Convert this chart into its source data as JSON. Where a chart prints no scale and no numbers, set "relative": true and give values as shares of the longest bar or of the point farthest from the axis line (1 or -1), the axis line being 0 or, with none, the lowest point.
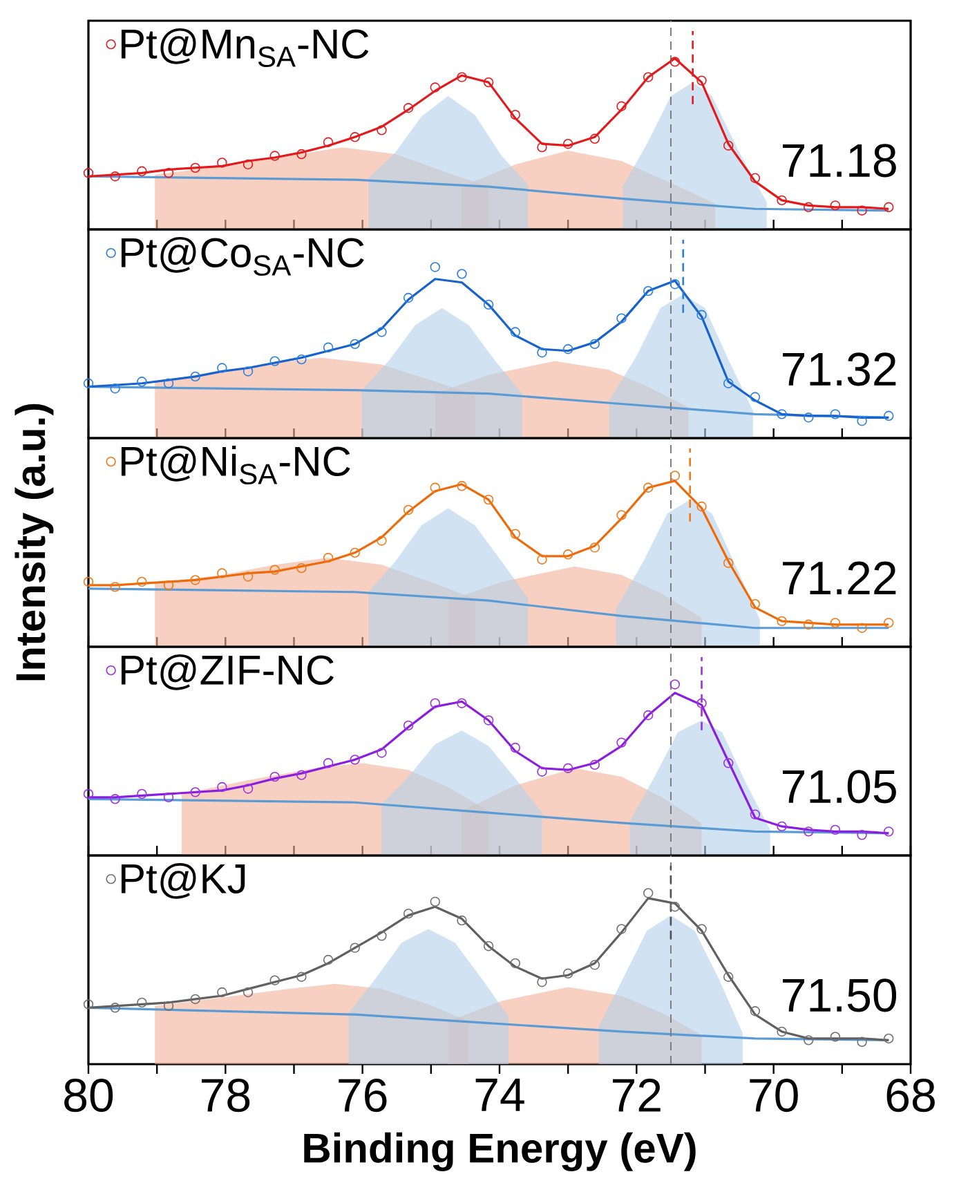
{
  "chart_data": [
    {
      "type": "line",
      "relative": true,
      "legend": "top left",
      "tick_labels": false,
      "xlim": [
        80,
        68
      ],
      "xticks": [
        80,
        {
          "value": 79,
          "label": null
        },
        78,
        {
          "value": 77,
          "label": null
        },
        76,
        {
          "value": 75,
          "label": null
        },
        74,
        {
          "value": 73,
          "label": null
        },
        72,
        {
          "value": 71,
          "label": null
        },
        70,
        {
          "value": 69,
          "label": null
        },
        68
      ],
      "x": [
        80,
        79.61,
        79.22,
        78.83,
        78.44,
        78.05,
        77.67,
        77.28,
        76.89,
        76.5,
        76.11,
        75.72,
        75.33,
        74.94,
        74.55,
        74.16,
        73.77,
        73.38,
        73.0,
        72.61,
        72.22,
        71.83,
        71.44,
        71.05,
        70.66,
        70.27,
        69.88,
        69.49,
        69.1,
        68.71,
        68.32
      ],
      "series": [
        {
          "type": "area",
          "color": "#f4b09a",
          "x": [
            79.03,
            78.05,
            77.08,
            76.3,
            75.52,
            74.75,
            74.16
          ],
          "values": [
            0.32,
            0.37,
            0.43,
            0.48,
            0.44,
            0.33,
            0.25
          ]
        },
        {
          "type": "area",
          "color": "#f4b09a",
          "x": [
            74.55,
            73.77,
            73.0,
            72.22,
            71.44,
            70.85
          ],
          "values": [
            0.25,
            0.38,
            0.46,
            0.4,
            0.26,
            0.15
          ]
        },
        {
          "type": "area",
          "color": "#b3d0ea",
          "x": [
            75.91,
            75.52,
            75.14,
            74.75,
            74.36,
            73.97,
            73.58
          ],
          "values": [
            0.3,
            0.45,
            0.66,
            0.78,
            0.67,
            0.43,
            0.26
          ]
        },
        {
          "type": "area",
          "color": "#b3d0ea",
          "x": [
            72.2,
            71.85,
            71.5,
            71.18,
            70.9,
            70.5,
            70.1
          ],
          "values": [
            0.25,
            0.5,
            0.78,
            0.86,
            0.78,
            0.45,
            0.16
          ]
        },
        {
          "type": "line",
          "color": "#5b9bd5",
          "x": [
            80,
            76.11,
            74.16,
            72.22,
            70.27,
            68.32
          ],
          "values": [
            0.31,
            0.29,
            0.25,
            0.18,
            0.12,
            0.11
          ]
        },
        {
          "type": "scatter",
          "marker": "circle",
          "name": "Pt@Mn$_{SA}$-NC",
          "color": "#e31a1c",
          "values": [
            0.33,
            0.31,
            0.34,
            0.33,
            0.36,
            0.39,
            0.38,
            0.43,
            0.44,
            0.51,
            0.54,
            0.58,
            0.71,
            0.83,
            0.89,
            0.86,
            0.67,
            0.48,
            0.5,
            0.53,
            0.72,
            0.89,
            0.98,
            0.87,
            0.49,
            0.3,
            0.17,
            0.13,
            0.14,
            0.11,
            0.13
          ]
        },
        {
          "color": "#e31a1c",
          "values": [
            0.31,
            0.32,
            0.33,
            0.35,
            0.36,
            0.37,
            0.4,
            0.42,
            0.45,
            0.49,
            0.54,
            0.6,
            0.7,
            0.81,
            0.9,
            0.86,
            0.65,
            0.5,
            0.49,
            0.54,
            0.7,
            0.89,
            1.0,
            0.86,
            0.5,
            0.28,
            0.17,
            0.14,
            0.13,
            0.13,
            0.12
          ]
        }
      ],
      "ref_lines": [
        {
          "axis": "x",
          "value": 71.5,
          "color": "#808080",
          "line_style": "dashed"
        },
        {
          "axis": "x",
          "value": 71.18,
          "color": "#e31a1c",
          "line_style": "dashed",
          "label": "71.18"
        }
      ]
    },
    {
      "type": "line",
      "relative": true,
      "legend": "top left",
      "tick_labels": false,
      "xlim": [
        80,
        68
      ],
      "xticks": [
        80,
        {
          "value": 79,
          "label": null
        },
        78,
        {
          "value": 77,
          "label": null
        },
        76,
        {
          "value": 75,
          "label": null
        },
        74,
        {
          "value": 73,
          "label": null
        },
        72,
        {
          "value": 71,
          "label": null
        },
        70,
        {
          "value": 69,
          "label": null
        },
        68
      ],
      "x": [
        80,
        79.61,
        79.22,
        78.83,
        78.44,
        78.05,
        77.67,
        77.28,
        76.89,
        76.5,
        76.11,
        75.72,
        75.33,
        74.94,
        74.55,
        74.16,
        73.77,
        73.38,
        73.0,
        72.61,
        72.22,
        71.83,
        71.44,
        71.05,
        70.66,
        70.27,
        69.88,
        69.49,
        69.1,
        68.71,
        68.32
      ],
      "series": [
        {
          "type": "area",
          "color": "#f4b09a",
          "x": [
            79.03,
            78.05,
            77.28,
            76.6,
            75.72,
            74.94,
            74.36
          ],
          "values": [
            0.33,
            0.39,
            0.44,
            0.47,
            0.43,
            0.33,
            0.25
          ]
        },
        {
          "type": "area",
          "color": "#f4b09a",
          "x": [
            74.94,
            74.16,
            73.19,
            72.41,
            71.83,
            71.24
          ],
          "values": [
            0.26,
            0.37,
            0.45,
            0.4,
            0.3,
            0.18
          ]
        },
        {
          "type": "area",
          "color": "#b3d0ea",
          "x": [
            76.01,
            75.62,
            75.23,
            74.84,
            74.45,
            74.06,
            73.67
          ],
          "values": [
            0.28,
            0.45,
            0.66,
            0.76,
            0.66,
            0.45,
            0.26
          ]
        },
        {
          "type": "area",
          "color": "#b3d0ea",
          "x": [
            72.4,
            72.0,
            71.65,
            71.32,
            71.0,
            70.65,
            70.3
          ],
          "values": [
            0.22,
            0.48,
            0.76,
            0.84,
            0.76,
            0.45,
            0.16
          ]
        },
        {
          "type": "line",
          "color": "#5b9bd5",
          "x": [
            80,
            76.11,
            74.16,
            72.22,
            70.27,
            68.32
          ],
          "values": [
            0.3,
            0.28,
            0.26,
            0.2,
            0.14,
            0.12
          ]
        },
        {
          "type": "scatter",
          "marker": "circle",
          "name": "Pt@Co$_{SA}$-NC",
          "color": "#2a7ee0",
          "values": [
            0.32,
            0.29,
            0.33,
            0.32,
            0.36,
            0.41,
            0.39,
            0.45,
            0.46,
            0.53,
            0.55,
            0.62,
            0.82,
            1.0,
            0.96,
            0.78,
            0.62,
            0.5,
            0.52,
            0.55,
            0.7,
            0.86,
            0.9,
            0.72,
            0.32,
            0.24,
            0.14,
            0.12,
            0.14,
            0.1,
            0.13
          ]
        },
        {
          "color": "#1762cc",
          "values": [
            0.3,
            0.31,
            0.32,
            0.34,
            0.36,
            0.39,
            0.41,
            0.44,
            0.47,
            0.51,
            0.55,
            0.64,
            0.81,
            0.93,
            0.91,
            0.78,
            0.6,
            0.52,
            0.51,
            0.56,
            0.68,
            0.86,
            0.92,
            0.71,
            0.33,
            0.22,
            0.14,
            0.13,
            0.13,
            0.12,
            0.12
          ]
        }
      ],
      "ref_lines": [
        {
          "axis": "x",
          "value": 71.5,
          "color": "#808080",
          "line_style": "dashed"
        },
        {
          "axis": "x",
          "value": 71.32,
          "color": "#2a7ee0",
          "line_style": "dashed",
          "label": "71.32"
        }
      ]
    },
    {
      "type": "line",
      "relative": true,
      "legend": "top left",
      "tick_labels": false,
      "xlim": [
        80,
        68
      ],
      "ylabel": "Intensity (a.u.)",
      "xticks": [
        80,
        {
          "value": 79,
          "label": null
        },
        78,
        {
          "value": 77,
          "label": null
        },
        76,
        {
          "value": 75,
          "label": null
        },
        74,
        {
          "value": 73,
          "label": null
        },
        72,
        {
          "value": 71,
          "label": null
        },
        70,
        {
          "value": 69,
          "label": null
        },
        68
      ],
      "x": [
        80,
        79.61,
        79.22,
        78.83,
        78.44,
        78.05,
        77.67,
        77.28,
        76.89,
        76.5,
        76.11,
        75.72,
        75.33,
        74.94,
        74.55,
        74.16,
        73.77,
        73.38,
        73.0,
        72.61,
        72.22,
        71.83,
        71.44,
        71.05,
        70.66,
        70.27,
        69.88,
        69.49,
        69.1,
        68.71,
        68.32
      ],
      "series": [
        {
          "type": "area",
          "color": "#f4b09a",
          "x": [
            79.03,
            78.05,
            77.28,
            76.5,
            75.72,
            74.94,
            74.36
          ],
          "values": [
            0.37,
            0.42,
            0.48,
            0.52,
            0.48,
            0.37,
            0.28
          ]
        },
        {
          "type": "area",
          "color": "#f4b09a",
          "x": [
            74.75,
            73.97,
            72.9,
            72.22,
            71.63,
            71.05
          ],
          "values": [
            0.27,
            0.38,
            0.47,
            0.42,
            0.31,
            0.17
          ]
        },
        {
          "type": "area",
          "color": "#b3d0ea",
          "x": [
            75.91,
            75.52,
            75.14,
            74.75,
            74.36,
            73.97,
            73.58
          ],
          "values": [
            0.32,
            0.5,
            0.71,
            0.81,
            0.71,
            0.5,
            0.28
          ]
        },
        {
          "type": "area",
          "color": "#b3d0ea",
          "x": [
            72.3,
            71.9,
            71.55,
            71.22,
            70.9,
            70.55,
            70.2
          ],
          "values": [
            0.22,
            0.5,
            0.78,
            0.86,
            0.78,
            0.47,
            0.16
          ]
        },
        {
          "type": "line",
          "color": "#5b9bd5",
          "x": [
            80,
            76.11,
            74.16,
            72.22,
            70.27,
            68.32
          ],
          "values": [
            0.34,
            0.32,
            0.27,
            0.18,
            0.11,
            0.11
          ]
        },
        {
          "type": "scatter",
          "marker": "circle",
          "name": "Pt@Ni$_{SA}$-NC",
          "color": "#f07818",
          "values": [
            0.38,
            0.35,
            0.38,
            0.36,
            0.39,
            0.43,
            0.41,
            0.45,
            0.46,
            0.52,
            0.55,
            0.62,
            0.8,
            0.93,
            0.94,
            0.86,
            0.66,
            0.51,
            0.54,
            0.58,
            0.77,
            0.93,
            1.0,
            0.82,
            0.49,
            0.25,
            0.15,
            0.13,
            0.14,
            0.11,
            0.14
          ]
        },
        {
          "color": "#ee6a08",
          "values": [
            0.36,
            0.36,
            0.37,
            0.38,
            0.39,
            0.41,
            0.43,
            0.44,
            0.47,
            0.5,
            0.55,
            0.64,
            0.79,
            0.91,
            0.95,
            0.86,
            0.64,
            0.53,
            0.53,
            0.59,
            0.75,
            0.93,
            0.97,
            0.81,
            0.5,
            0.23,
            0.15,
            0.14,
            0.13,
            0.13,
            0.13
          ]
        }
      ],
      "ref_lines": [
        {
          "axis": "x",
          "value": 71.5,
          "color": "#808080",
          "line_style": "dashed"
        },
        {
          "axis": "x",
          "value": 71.22,
          "color": "#f07818",
          "line_style": "dashed",
          "label": "71.22"
        }
      ]
    },
    {
      "type": "line",
      "relative": true,
      "legend": "top left",
      "tick_labels": false,
      "xlim": [
        80,
        68
      ],
      "xticks": [
        80,
        {
          "value": 79,
          "label": null
        },
        78,
        {
          "value": 77,
          "label": null
        },
        76,
        {
          "value": 75,
          "label": null
        },
        74,
        {
          "value": 73,
          "label": null
        },
        72,
        {
          "value": 71,
          "label": null
        },
        70,
        {
          "value": 69,
          "label": null
        },
        68
      ],
      "x": [
        80,
        79.61,
        79.22,
        78.83,
        78.44,
        78.05,
        77.67,
        77.28,
        76.89,
        76.5,
        76.11,
        75.72,
        75.33,
        74.94,
        74.55,
        74.16,
        73.77,
        73.38,
        73.0,
        72.61,
        72.22,
        71.83,
        71.44,
        71.05,
        70.66,
        70.27,
        69.88,
        69.49,
        69.1,
        68.71,
        68.32
      ],
      "series": [
        {
          "type": "area",
          "color": "#f4b09a",
          "x": [
            78.64,
            77.67,
            76.69,
            76.01,
            75.33,
            74.75,
            74.16
          ],
          "values": [
            0.36,
            0.44,
            0.51,
            0.54,
            0.5,
            0.4,
            0.26
          ]
        },
        {
          "type": "area",
          "color": "#f4b09a",
          "x": [
            74.55,
            73.77,
            72.9,
            72.22,
            71.63,
            71.05
          ],
          "values": [
            0.26,
            0.41,
            0.51,
            0.46,
            0.34,
            0.19
          ]
        },
        {
          "type": "area",
          "color": "#b3d0ea",
          "x": [
            75.72,
            75.33,
            74.94,
            74.55,
            74.16,
            73.77,
            73.38
          ],
          "values": [
            0.3,
            0.46,
            0.65,
            0.73,
            0.64,
            0.45,
            0.25
          ]
        },
        {
          "type": "area",
          "color": "#b3d0ea",
          "x": [
            72.1,
            71.75,
            71.4,
            71.05,
            70.75,
            70.4,
            70.05
          ],
          "values": [
            0.2,
            0.45,
            0.72,
            0.79,
            0.72,
            0.42,
            0.15
          ]
        },
        {
          "type": "line",
          "color": "#5b9bd5",
          "x": [
            80,
            76.11,
            74.16,
            72.22,
            70.27,
            68.32
          ],
          "values": [
            0.33,
            0.31,
            0.25,
            0.19,
            0.14,
            0.13
          ]
        },
        {
          "type": "scatter",
          "marker": "circle",
          "name": "Pt@ZIF-NC",
          "color": "#9b30e0",
          "values": [
            0.36,
            0.33,
            0.36,
            0.34,
            0.37,
            0.4,
            0.39,
            0.46,
            0.47,
            0.54,
            0.56,
            0.6,
            0.76,
            0.89,
            0.89,
            0.79,
            0.63,
            0.49,
            0.51,
            0.53,
            0.66,
            0.82,
            1.0,
            0.89,
            0.54,
            0.24,
            0.17,
            0.14,
            0.15,
            0.12,
            0.14
          ]
        },
        {
          "color": "#8a1ee0",
          "values": [
            0.34,
            0.34,
            0.35,
            0.36,
            0.37,
            0.38,
            0.41,
            0.45,
            0.48,
            0.52,
            0.56,
            0.62,
            0.75,
            0.87,
            0.9,
            0.79,
            0.61,
            0.51,
            0.5,
            0.54,
            0.64,
            0.82,
            0.95,
            0.88,
            0.55,
            0.22,
            0.17,
            0.15,
            0.14,
            0.14,
            0.13
          ]
        }
      ],
      "ref_lines": [
        {
          "axis": "x",
          "value": 71.5,
          "color": "#808080",
          "line_style": "dashed"
        },
        {
          "axis": "x",
          "value": 71.05,
          "color": "#9b30e0",
          "line_style": "dashed",
          "label": "71.05"
        }
      ]
    },
    {
      "type": "line",
      "relative": true,
      "legend": "top left",
      "tick_labels": "x",
      "xlim": [
        80,
        68
      ],
      "xlabel": "Binding Energy (eV)",
      "xticks": [
        80,
        {
          "value": 79,
          "label": null
        },
        78,
        {
          "value": 77,
          "label": null
        },
        76,
        {
          "value": 75,
          "label": null
        },
        74,
        {
          "value": 73,
          "label": null
        },
        72,
        {
          "value": 71,
          "label": null
        },
        70,
        {
          "value": 69,
          "label": null
        },
        68
      ],
      "x": [
        80,
        79.61,
        79.22,
        78.83,
        78.44,
        78.05,
        77.67,
        77.28,
        76.89,
        76.5,
        76.11,
        75.72,
        75.33,
        74.94,
        74.55,
        74.16,
        73.77,
        73.38,
        73.0,
        72.61,
        72.22,
        71.83,
        71.44,
        71.05,
        70.66,
        70.27,
        69.88,
        69.49,
        69.1,
        68.71,
        68.32
      ],
      "series": [
        {
          "type": "area",
          "color": "#f4b09a",
          "x": [
            79.03,
            78.05,
            77.08,
            76.4,
            75.72,
            75.04,
            74.45
          ],
          "values": [
            0.34,
            0.39,
            0.44,
            0.47,
            0.44,
            0.35,
            0.25
          ]
        },
        {
          "type": "area",
          "color": "#f4b09a",
          "x": [
            74.75,
            73.97,
            73.0,
            72.22,
            71.63,
            71.05
          ],
          "values": [
            0.25,
            0.37,
            0.45,
            0.4,
            0.3,
            0.17
          ]
        },
        {
          "type": "area",
          "color": "#b3d0ea",
          "x": [
            76.2,
            75.81,
            75.43,
            75.04,
            74.65,
            74.26,
            73.87
          ],
          "values": [
            0.3,
            0.5,
            0.71,
            0.79,
            0.71,
            0.5,
            0.28
          ]
        },
        {
          "type": "area",
          "color": "#b3d0ea",
          "x": [
            72.55,
            72.2,
            71.85,
            71.5,
            71.15,
            70.8,
            70.45
          ],
          "values": [
            0.22,
            0.5,
            0.78,
            0.87,
            0.78,
            0.5,
            0.18
          ]
        },
        {
          "type": "line",
          "color": "#5b9bd5",
          "x": [
            80,
            76.11,
            74.16,
            72.22,
            70.27,
            68.32
          ],
          "values": [
            0.33,
            0.29,
            0.24,
            0.19,
            0.15,
            0.14
          ]
        },
        {
          "type": "scatter",
          "marker": "circle",
          "name": "Pt@KJ",
          "color": "#707070",
          "values": [
            0.35,
            0.33,
            0.36,
            0.34,
            0.38,
            0.42,
            0.42,
            0.49,
            0.51,
            0.61,
            0.68,
            0.75,
            0.88,
            0.95,
            0.84,
            0.69,
            0.59,
            0.48,
            0.53,
            0.58,
            0.79,
            1.0,
            0.92,
            0.79,
            0.51,
            0.31,
            0.19,
            0.14,
            0.16,
            0.13,
            0.15
          ]
        },
        {
          "color": "#606060",
          "values": [
            0.33,
            0.34,
            0.35,
            0.36,
            0.38,
            0.4,
            0.44,
            0.48,
            0.52,
            0.59,
            0.68,
            0.77,
            0.87,
            0.92,
            0.85,
            0.69,
            0.57,
            0.5,
            0.52,
            0.59,
            0.77,
            0.97,
            0.94,
            0.78,
            0.52,
            0.29,
            0.19,
            0.15,
            0.15,
            0.15,
            0.14
          ]
        }
      ],
      "ref_lines": [
        {
          "axis": "x",
          "value": 71.5,
          "color": "#808080",
          "line_style": "dashed"
        },
        {
          "axis": "x",
          "value": 71.5,
          "color": "#505050",
          "line_style": "dashed",
          "label": "71.50"
        }
      ]
    }
  ]
}
